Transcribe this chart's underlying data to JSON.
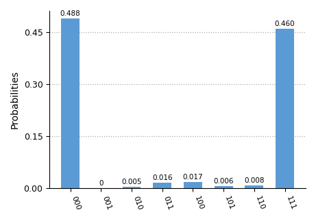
{
  "categories": [
    "000",
    "001",
    "010",
    "011",
    "100",
    "101",
    "110",
    "111"
  ],
  "values": [
    0.488,
    0.0,
    0.005,
    0.016,
    0.017,
    0.006,
    0.008,
    0.46
  ],
  "bar_color": "#5b9bd5",
  "ylabel": "Probabilities",
  "yticks": [
    0.0,
    0.15,
    0.3,
    0.45
  ],
  "ylim": [
    0,
    0.51
  ],
  "grid_color": "#aaaaaa",
  "grid_linestyle": ":",
  "bar_labels": [
    "0.488",
    "0",
    "0.005",
    "0.016",
    "0.017",
    "0.006",
    "0.008",
    "0.460"
  ],
  "label_fontsize": 7.5,
  "tick_fontsize": 8,
  "ylabel_fontsize": 10,
  "ytick_fontsize": 9,
  "background_color": "#ffffff"
}
